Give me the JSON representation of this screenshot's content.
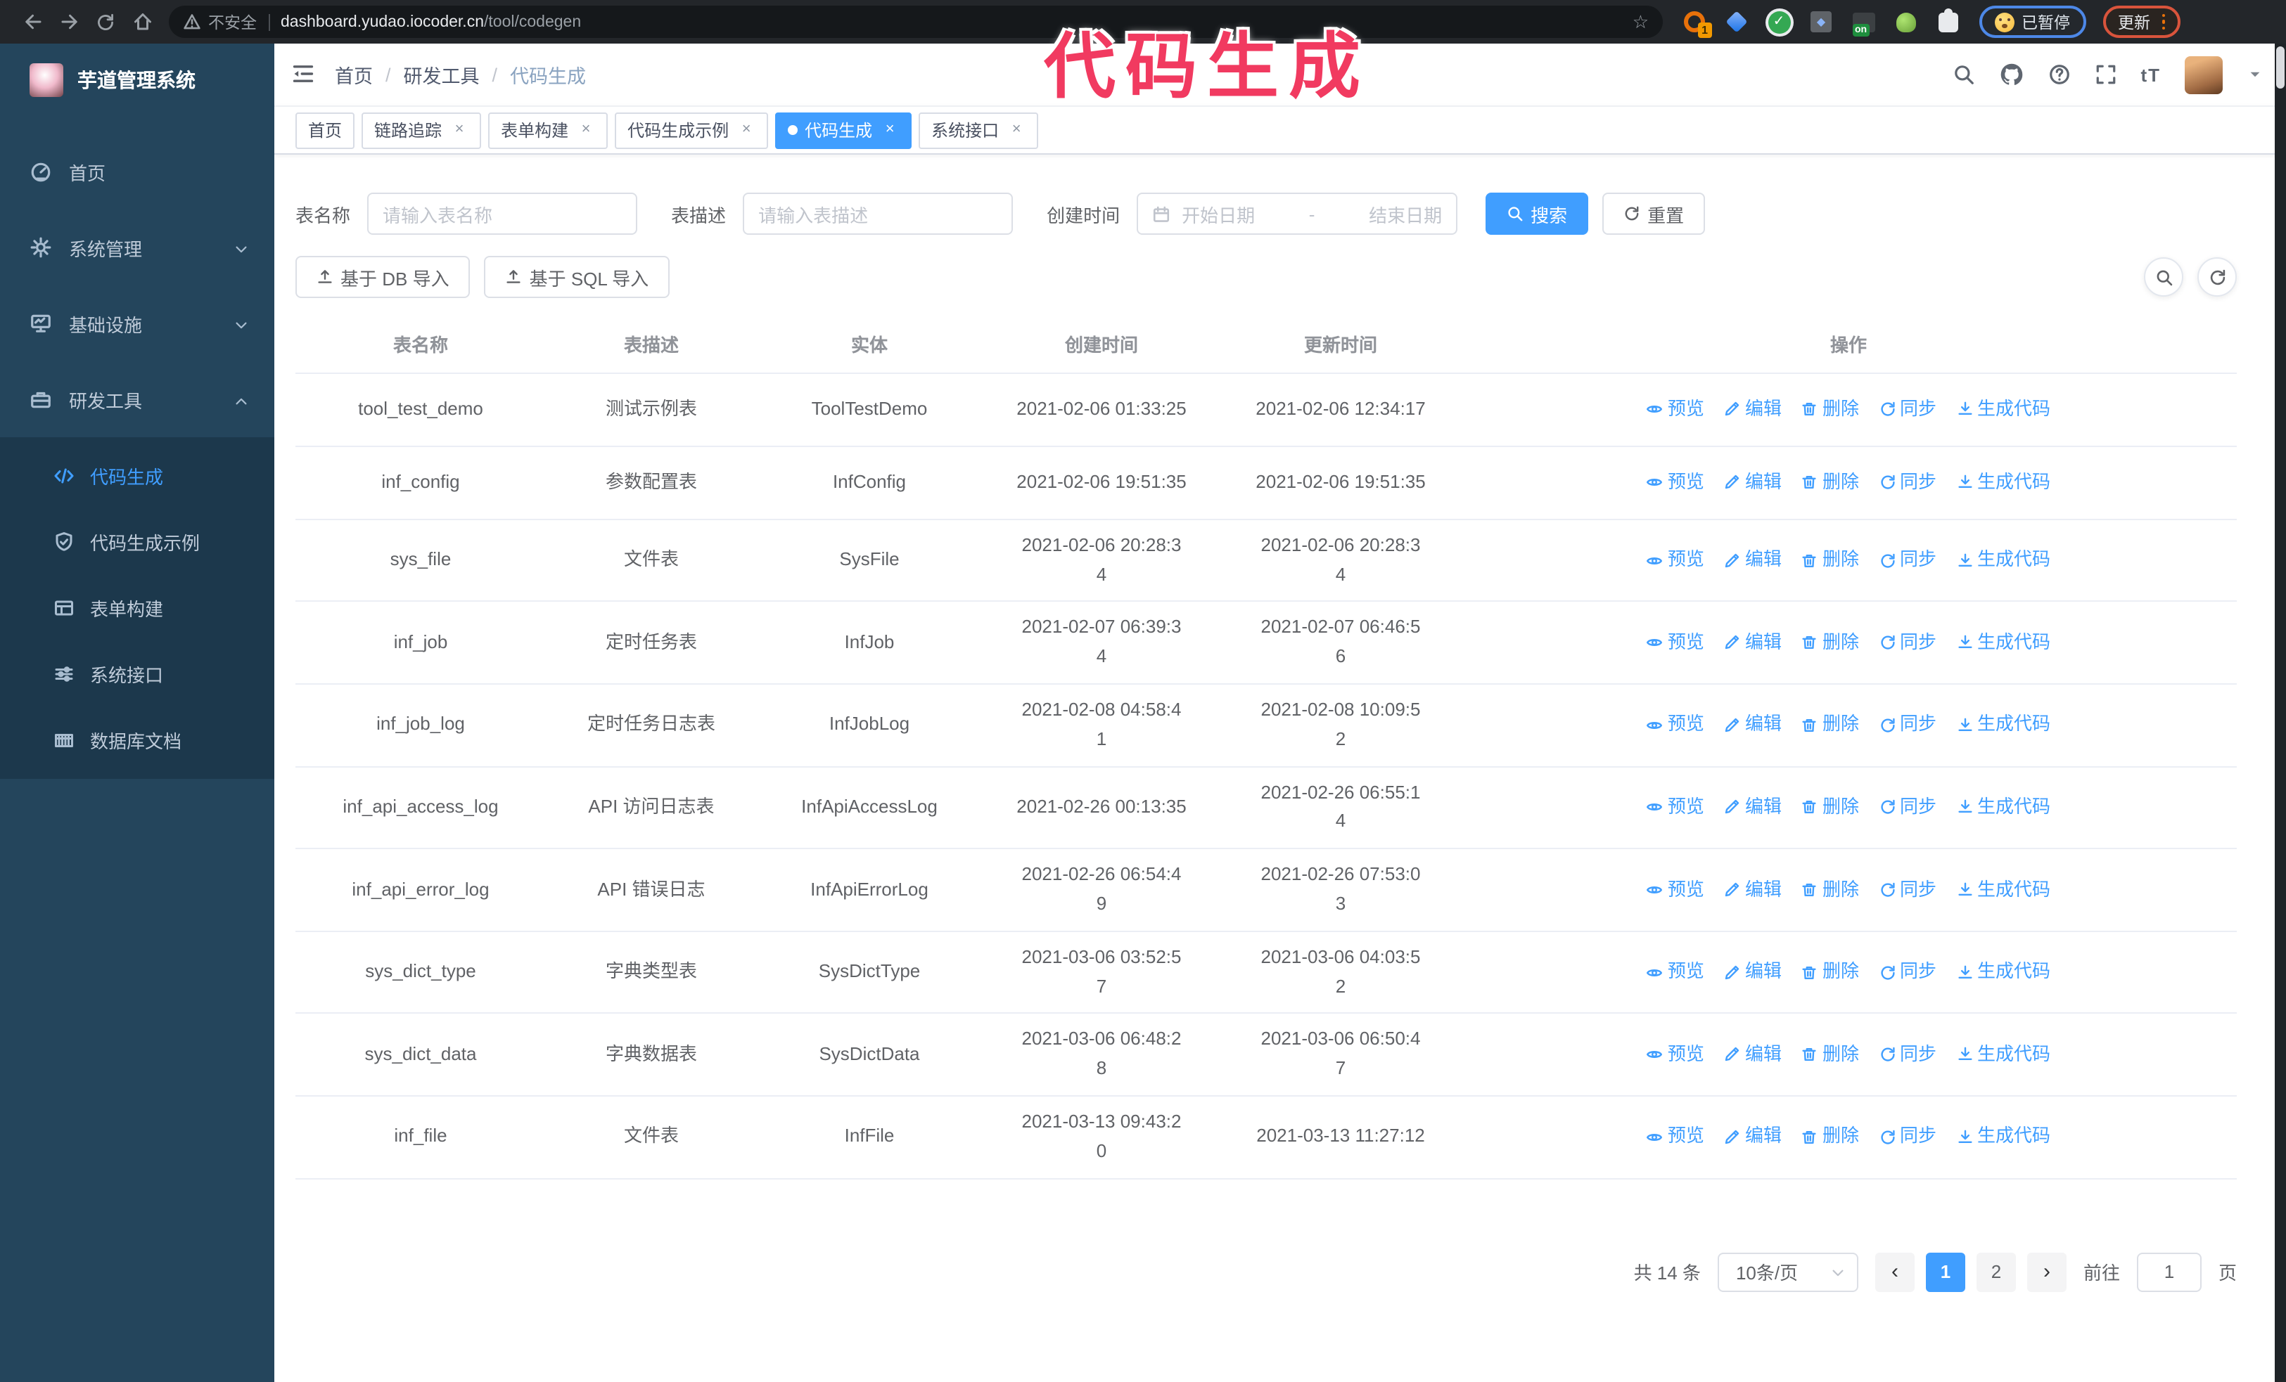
{
  "browser": {
    "secure_label": "不安全",
    "url_host": "dashboard.yudao.iocoder.cn",
    "url_path": "/tool/codegen",
    "ext_badge": "1",
    "ext_on_badge": "on",
    "paused_label": "已暂停",
    "update_label": "更新"
  },
  "annotation": {
    "text": "代码生成",
    "color": "#f13a60"
  },
  "sidebar": {
    "title": "芋道管理系统",
    "items": [
      {
        "name": "home",
        "label": "首页",
        "icon": "dashboard-icon",
        "chevron": ""
      },
      {
        "name": "system-admin",
        "label": "系统管理",
        "icon": "gear-icon",
        "chevron": "down"
      },
      {
        "name": "infrastructure",
        "label": "基础设施",
        "icon": "monitor-icon",
        "chevron": "down"
      },
      {
        "name": "dev-tools",
        "label": "研发工具",
        "icon": "toolbox-icon",
        "chevron": "up"
      }
    ],
    "subitems": [
      {
        "name": "codegen",
        "label": "代码生成",
        "icon": "code-icon",
        "active": true
      },
      {
        "name": "codegen-example",
        "label": "代码生成示例",
        "icon": "shield-icon",
        "active": false
      },
      {
        "name": "form-builder",
        "label": "表单构建",
        "icon": "form-icon",
        "active": false
      },
      {
        "name": "system-api",
        "label": "系统接口",
        "icon": "sliders-icon",
        "active": false
      },
      {
        "name": "db-doc",
        "label": "数据库文档",
        "icon": "database-icon",
        "active": false
      }
    ]
  },
  "header": {
    "breadcrumb": [
      "首页",
      "研发工具",
      "代码生成"
    ],
    "font_size_icon_text": "tT"
  },
  "tabs": [
    {
      "name": "home",
      "label": "首页",
      "closable": false,
      "active": false
    },
    {
      "name": "trace",
      "label": "链路追踪",
      "closable": true,
      "active": false
    },
    {
      "name": "form-builder",
      "label": "表单构建",
      "closable": true,
      "active": false
    },
    {
      "name": "codegen-example",
      "label": "代码生成示例",
      "closable": true,
      "active": false
    },
    {
      "name": "codegen",
      "label": "代码生成",
      "closable": true,
      "active": true
    },
    {
      "name": "system-api",
      "label": "系统接口",
      "closable": true,
      "active": false
    }
  ],
  "filters": {
    "name_label": "表名称",
    "name_placeholder": "请输入表名称",
    "desc_label": "表描述",
    "desc_placeholder": "请输入表描述",
    "time_label": "创建时间",
    "start_placeholder": "开始日期",
    "range_separator": "-",
    "end_placeholder": "结束日期",
    "search_label": "搜索",
    "reset_label": "重置"
  },
  "toolbar": {
    "import_db_label": "基于 DB 导入",
    "import_sql_label": "基于 SQL 导入"
  },
  "table": {
    "columns": [
      "表名称",
      "表描述",
      "实体",
      "创建时间",
      "更新时间",
      "操作"
    ],
    "actions": [
      {
        "name": "preview",
        "label": "预览",
        "icon": "eye-icon"
      },
      {
        "name": "edit",
        "label": "编辑",
        "icon": "edit-icon"
      },
      {
        "name": "delete",
        "label": "删除",
        "icon": "trash-icon"
      },
      {
        "name": "sync",
        "label": "同步",
        "icon": "sync-icon"
      },
      {
        "name": "generate",
        "label": "生成代码",
        "icon": "download-icon"
      }
    ],
    "rows": [
      {
        "name": "tool_test_demo",
        "desc": "测试示例表",
        "entity": "ToolTestDemo",
        "created": "2021-02-06 01:33:25",
        "updated": "2021-02-06 12:34:17"
      },
      {
        "name": "inf_config",
        "desc": "参数配置表",
        "entity": "InfConfig",
        "created": "2021-02-06 19:51:35",
        "updated": "2021-02-06 19:51:35"
      },
      {
        "name": "sys_file",
        "desc": "文件表",
        "entity": "SysFile",
        "created": "2021-02-06 20:28:3\n4",
        "updated": "2021-02-06 20:28:3\n4"
      },
      {
        "name": "inf_job",
        "desc": "定时任务表",
        "entity": "InfJob",
        "created": "2021-02-07 06:39:3\n4",
        "updated": "2021-02-07 06:46:5\n6"
      },
      {
        "name": "inf_job_log",
        "desc": "定时任务日志表",
        "entity": "InfJobLog",
        "created": "2021-02-08 04:58:4\n1",
        "updated": "2021-02-08 10:09:5\n2"
      },
      {
        "name": "inf_api_access_log",
        "desc": "API 访问日志表",
        "entity": "InfApiAccessLog",
        "created": "2021-02-26 00:13:35",
        "updated": "2021-02-26 06:55:1\n4"
      },
      {
        "name": "inf_api_error_log",
        "desc": "API 错误日志",
        "entity": "InfApiErrorLog",
        "created": "2021-02-26 06:54:4\n9",
        "updated": "2021-02-26 07:53:0\n3"
      },
      {
        "name": "sys_dict_type",
        "desc": "字典类型表",
        "entity": "SysDictType",
        "created": "2021-03-06 03:52:5\n7",
        "updated": "2021-03-06 04:03:5\n2"
      },
      {
        "name": "sys_dict_data",
        "desc": "字典数据表",
        "entity": "SysDictData",
        "created": "2021-03-06 06:48:2\n8",
        "updated": "2021-03-06 06:50:4\n7"
      },
      {
        "name": "inf_file",
        "desc": "文件表",
        "entity": "InfFile",
        "created": "2021-03-13 09:43:2\n0",
        "updated": "2021-03-13 11:27:12"
      }
    ]
  },
  "pagination": {
    "total_label": "共 14 条",
    "page_size_label": "10条/页",
    "prev_icon": "‹",
    "next_icon": "›",
    "pages": [
      "1",
      "2"
    ],
    "active_page": "1",
    "goto_label": "前往",
    "goto_value": "1",
    "goto_suffix": "页"
  },
  "colors": {
    "primary": "#409eff",
    "annotation": "#f13a60",
    "sidebar_bg": "#24455c",
    "submenu_bg": "#1c384c"
  }
}
